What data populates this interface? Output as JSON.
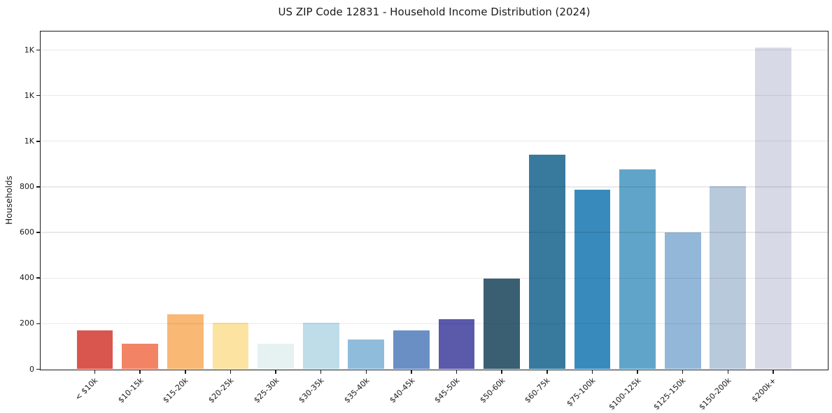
{
  "chart_data": {
    "type": "bar",
    "title": "US ZIP Code 12831 - Household Income Distribution (2024)",
    "xlabel": "",
    "ylabel": "Households",
    "categories": [
      "< $10k",
      "$10-15k",
      "$15-20k",
      "$20-25k",
      "$25-30k",
      "$30-35k",
      "$35-40k",
      "$40-45k",
      "$45-50k",
      "$50-60k",
      "$60-75k",
      "$75-100k",
      "$100-125k",
      "$125-150k",
      "$150-200k",
      "$200k+"
    ],
    "values": [
      170,
      111,
      240,
      203,
      113,
      203,
      130,
      170,
      221,
      397,
      941,
      788,
      876,
      599,
      803,
      1412
    ],
    "bar_colors": [
      "#d9564e",
      "#f28465",
      "#f9b873",
      "#fce3a1",
      "#e6f2f2",
      "#bedde9",
      "#90bcdb",
      "#6a8fc5",
      "#5a59aa",
      "#3a5f73",
      "#377a9e",
      "#398abc",
      "#60a5c9",
      "#93b7d8",
      "#b8c9dc",
      "#d7d9e6"
    ],
    "ylim": [
      0,
      1483
    ],
    "yticks": {
      "values": [
        0,
        200,
        400,
        600,
        800,
        1000,
        1200,
        1400
      ],
      "labels": [
        "0",
        "200",
        "400",
        "600",
        "800",
        "1K",
        "1K",
        "1K"
      ]
    },
    "x_tick_rotation": 45,
    "grid": true,
    "legend": false
  },
  "colors": {
    "background": "#ffffff",
    "grid": "#e9e9e9",
    "spine": "#1a1a1a",
    "text": "#1a1a1a"
  }
}
